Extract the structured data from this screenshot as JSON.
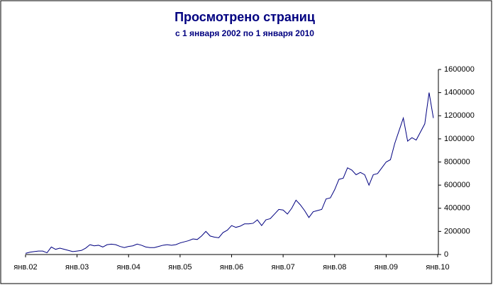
{
  "chart_data": {
    "type": "line",
    "title": "Просмотрено страниц",
    "subtitle": "с 1 января 2002 по 1 января 2010",
    "color": "#000080",
    "categories": [
      "янв.02",
      null,
      null,
      null,
      null,
      null,
      null,
      null,
      null,
      null,
      null,
      null,
      "янв.03",
      null,
      null,
      null,
      null,
      null,
      null,
      null,
      null,
      null,
      null,
      null,
      "янв.04",
      null,
      null,
      null,
      null,
      null,
      null,
      null,
      null,
      null,
      null,
      null,
      "янв.05",
      null,
      null,
      null,
      null,
      null,
      null,
      null,
      null,
      null,
      null,
      null,
      "янв.06",
      null,
      null,
      null,
      null,
      null,
      null,
      null,
      null,
      null,
      null,
      null,
      "янв.07",
      null,
      null,
      null,
      null,
      null,
      null,
      null,
      null,
      null,
      null,
      null,
      "янв.08",
      null,
      null,
      null,
      null,
      null,
      null,
      null,
      null,
      null,
      null,
      null,
      "янв.09",
      null,
      null,
      null,
      null,
      null,
      null,
      null,
      null,
      null,
      null,
      null,
      "янв.10"
    ],
    "values": [
      10000,
      20000,
      25000,
      30000,
      30000,
      15000,
      65000,
      45000,
      55000,
      45000,
      35000,
      25000,
      30000,
      35000,
      55000,
      85000,
      75000,
      80000,
      65000,
      85000,
      90000,
      85000,
      70000,
      60000,
      70000,
      75000,
      90000,
      80000,
      65000,
      60000,
      60000,
      70000,
      80000,
      85000,
      80000,
      85000,
      100000,
      110000,
      120000,
      135000,
      130000,
      160000,
      200000,
      160000,
      150000,
      145000,
      190000,
      210000,
      250000,
      235000,
      245000,
      265000,
      265000,
      270000,
      300000,
      250000,
      300000,
      310000,
      350000,
      390000,
      385000,
      350000,
      400000,
      470000,
      430000,
      380000,
      320000,
      370000,
      380000,
      390000,
      480000,
      490000,
      560000,
      650000,
      660000,
      750000,
      730000,
      690000,
      710000,
      690000,
      600000,
      690000,
      700000,
      750000,
      800000,
      820000,
      960000,
      1070000,
      1180000,
      980000,
      1010000,
      990000,
      1060000,
      1130000,
      1400000,
      1180000,
      null
    ],
    "ylim": [
      0,
      1600000
    ],
    "yticks": [
      0,
      200000,
      400000,
      600000,
      800000,
      1000000,
      1200000,
      1400000,
      1600000
    ]
  }
}
